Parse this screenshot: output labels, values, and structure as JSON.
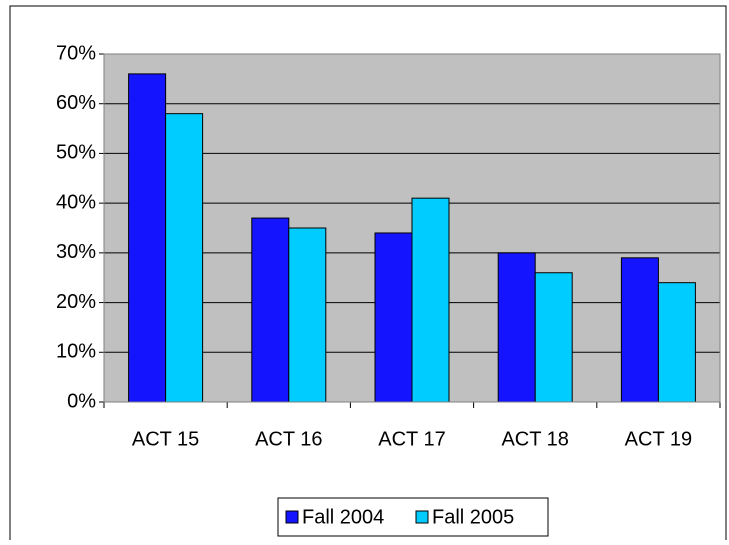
{
  "chart_data": {
    "type": "bar",
    "categories": [
      "ACT 15",
      "ACT 16",
      "ACT 17",
      "ACT 18",
      "ACT 19"
    ],
    "series": [
      {
        "name": "Fall 2004",
        "color": "#1414ff",
        "values": [
          66,
          37,
          34,
          30,
          29
        ]
      },
      {
        "name": "Fall 2005",
        "color": "#00ccff",
        "values": [
          58,
          35,
          41,
          26,
          24
        ]
      }
    ],
    "ylim": [
      0,
      70
    ],
    "yticks": [
      {
        "value": 0,
        "label": "0%"
      },
      {
        "value": 10,
        "label": "10%"
      },
      {
        "value": 20,
        "label": "20%"
      },
      {
        "value": 30,
        "label": "30%"
      },
      {
        "value": 40,
        "label": "40%"
      },
      {
        "value": 50,
        "label": "50%"
      },
      {
        "value": 60,
        "label": "60%"
      },
      {
        "value": 70,
        "label": "70%"
      }
    ],
    "grid": true,
    "legend": "bottom"
  }
}
